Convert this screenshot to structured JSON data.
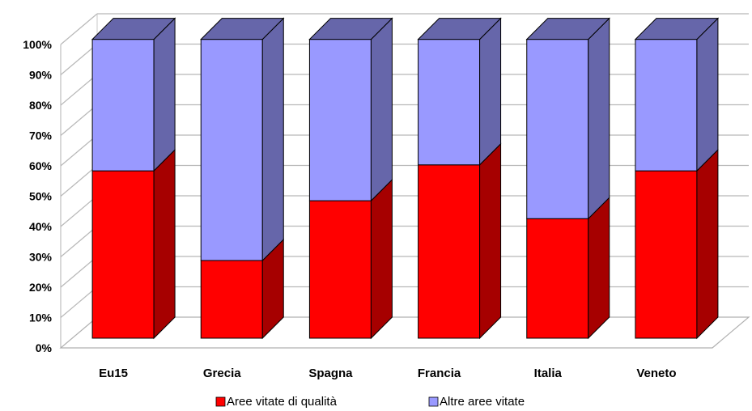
{
  "chart_data": {
    "type": "bar",
    "stacked": true,
    "percent": true,
    "three_d": true,
    "categories": [
      "Eu15",
      "Grecia",
      "Spagna",
      "Francia",
      "Italia",
      "Veneto"
    ],
    "series": [
      {
        "name": "Aree vitate di qualità",
        "values": [
          56,
          26,
          46,
          58,
          40,
          56
        ],
        "color": "#ff0000",
        "side_color": "#a60000"
      },
      {
        "name": "Altre aree vitate",
        "values": [
          44,
          74,
          54,
          42,
          60,
          44
        ],
        "color": "#9999ff",
        "side_color": "#6666aa"
      }
    ],
    "ylim": [
      0,
      100
    ],
    "y_ticks": [
      "0%",
      "10%",
      "20%",
      "30%",
      "40%",
      "50%",
      "60%",
      "70%",
      "80%",
      "90%",
      "100%"
    ],
    "grid": true,
    "legend_position": "bottom",
    "title": "",
    "xlabel": "",
    "ylabel": ""
  }
}
